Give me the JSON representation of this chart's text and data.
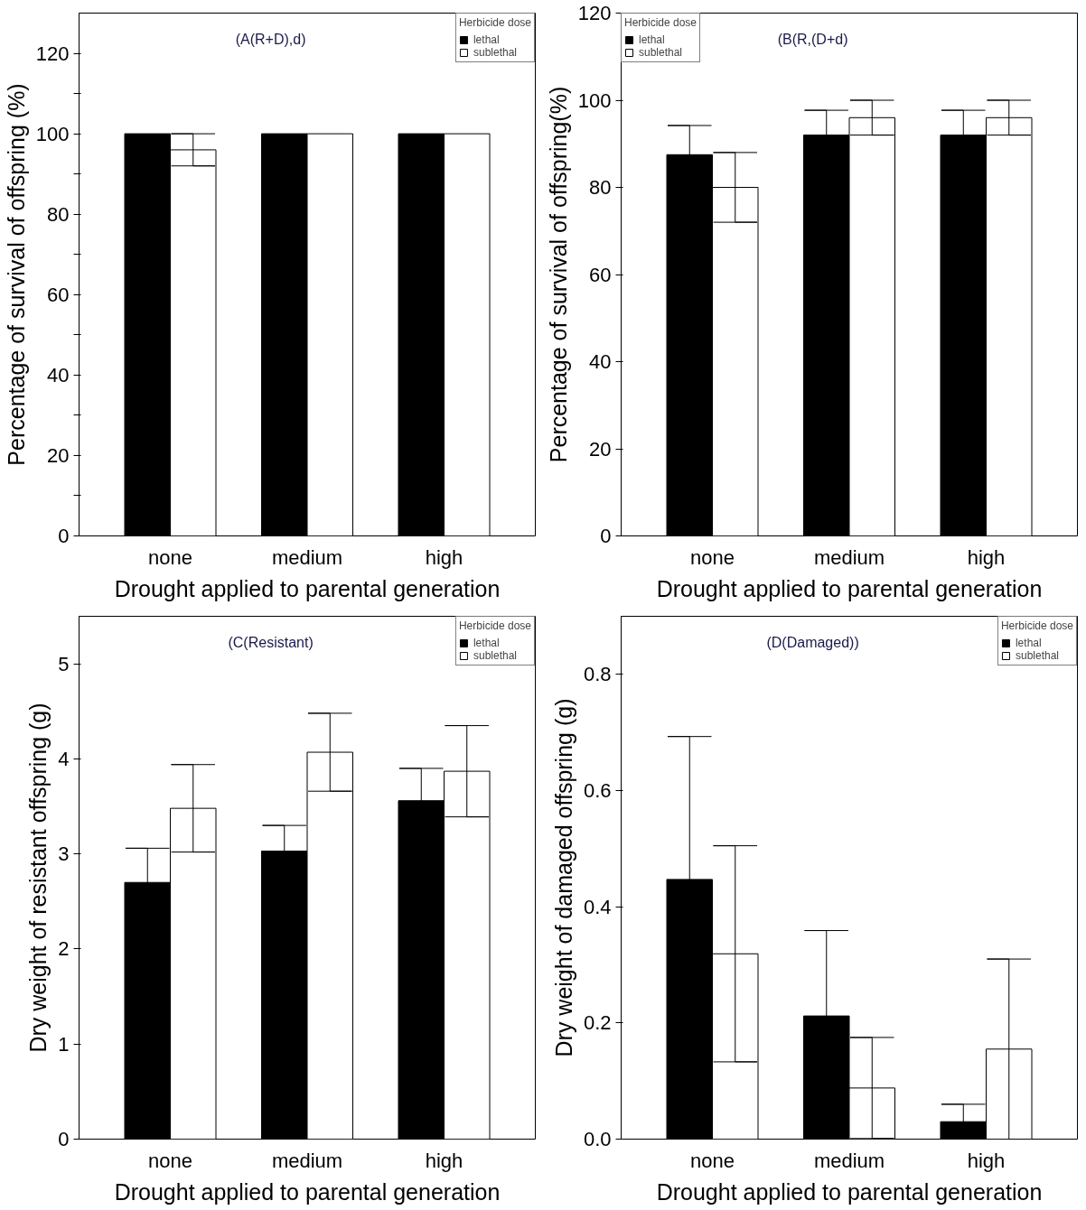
{
  "chart_data": [
    {
      "type": "bar",
      "xlabel": "Drought applied to parental generation",
      "ylabel": "Percentage of survival of offspring (%)",
      "legend_title": "Herbicide dose",
      "annotations": [
        "(A(R+D),d)"
      ],
      "categories": [
        "none",
        "medium",
        "high"
      ],
      "series": [
        {
          "name": "lethal",
          "color": "#000000",
          "values": [
            100,
            100,
            100
          ],
          "errors": [
            null,
            null,
            null
          ]
        },
        {
          "name": "sublethal",
          "color": "#ffffff",
          "values": [
            96,
            100,
            100
          ],
          "errors": [
            4,
            null,
            null
          ]
        }
      ],
      "ylim": [
        0,
        130
      ],
      "yticks": [
        0,
        {
          "value": 10,
          "label": null
        },
        20,
        {
          "value": 30,
          "label": null
        },
        40,
        {
          "value": 50,
          "label": null
        },
        60,
        {
          "value": 70,
          "label": null
        },
        80,
        {
          "value": 90,
          "label": null
        },
        100,
        {
          "value": 110,
          "label": null
        },
        120
      ],
      "grid": false,
      "legend": "top right"
    },
    {
      "type": "bar",
      "xlabel": "Drought applied to parental generation",
      "ylabel": "Percentage of survival of offspring(%)",
      "legend_title": "Herbicide dose",
      "annotations": [
        "(B(R,(D+d)"
      ],
      "categories": [
        "none",
        "medium",
        "high"
      ],
      "series": [
        {
          "name": "lethal",
          "color": "#000000",
          "values": [
            87.5,
            92,
            92
          ],
          "errors": [
            6.7,
            5.7,
            5.7
          ]
        },
        {
          "name": "sublethal",
          "color": "#ffffff",
          "values": [
            80,
            96,
            96
          ],
          "errors": [
            8,
            4,
            4
          ]
        }
      ],
      "ylim": [
        0,
        120
      ],
      "yticks": [
        0,
        20,
        40,
        60,
        80,
        100,
        120
      ],
      "grid": false,
      "legend": "top left"
    },
    {
      "type": "bar",
      "xlabel": "Drought applied to parental generation",
      "ylabel": "Dry weight of resistant offspring (g)",
      "legend_title": "Herbicide dose",
      "annotations": [
        "(C(Resistant)"
      ],
      "categories": [
        "none",
        "medium",
        "high"
      ],
      "series": [
        {
          "name": "lethal",
          "color": "#000000",
          "values": [
            2.7,
            3.03,
            3.56
          ],
          "errors": [
            0.36,
            0.27,
            0.34
          ]
        },
        {
          "name": "sublethal",
          "color": "#ffffff",
          "values": [
            3.48,
            4.07,
            3.87
          ],
          "errors": [
            0.46,
            0.41,
            0.48
          ]
        }
      ],
      "ylim": [
        0,
        5.5
      ],
      "yticks": [
        0,
        1,
        2,
        3,
        4,
        5
      ],
      "grid": false,
      "legend": "top right"
    },
    {
      "type": "bar",
      "xlabel": "Drought applied to parental generation",
      "ylabel": "Dry weight of damaged offspring (g)",
      "legend_title": "Herbicide dose",
      "annotations": [
        "(D(Damaged))"
      ],
      "categories": [
        "none",
        "medium",
        "high"
      ],
      "series": [
        {
          "name": "lethal",
          "color": "#000000",
          "values": [
            0.447,
            0.212,
            0.03
          ],
          "errors": [
            0.246,
            0.147,
            0.03
          ]
        },
        {
          "name": "sublethal",
          "color": "#ffffff",
          "values": [
            0.319,
            0.088,
            0.155
          ],
          "errors": [
            0.186,
            0.087,
            0.155
          ]
        }
      ],
      "ylim": [
        0,
        0.9
      ],
      "yticks": [
        {
          "value": 0,
          "label": "0.0"
        },
        0.2,
        0.4,
        0.6,
        0.8
      ],
      "grid": false,
      "legend": "top right"
    }
  ]
}
